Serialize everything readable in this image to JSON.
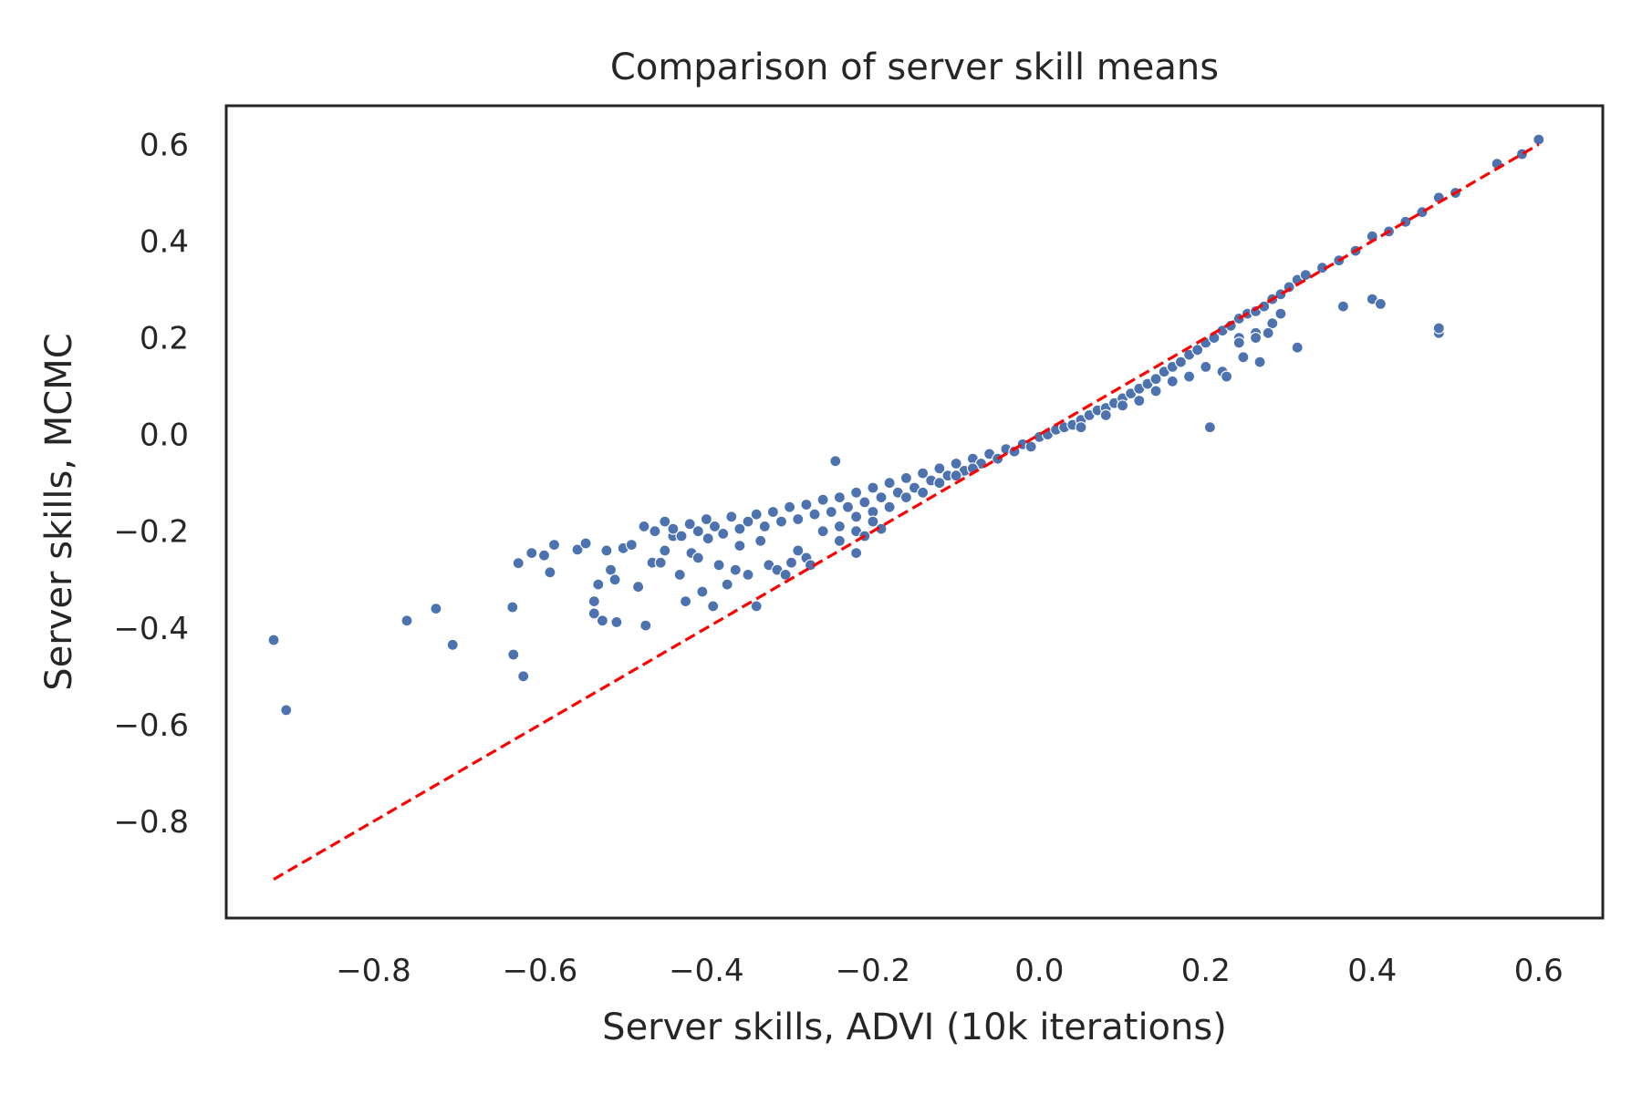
{
  "chart_data": {
    "type": "scatter",
    "title": "Comparison of server skill means",
    "xlabel": "Server skills, ADVI (10k iterations)",
    "ylabel": "Server skills, MCMC",
    "xlim": [
      -0.977,
      0.677
    ],
    "ylim": [
      -1.0,
      0.68
    ],
    "x_ticks": [
      -0.8,
      -0.6,
      -0.4,
      -0.2,
      0.0,
      0.2,
      0.4,
      0.6
    ],
    "x_tick_labels": [
      "−0.8",
      "−0.6",
      "−0.4",
      "−0.2",
      "0.0",
      "0.2",
      "0.4",
      "0.6"
    ],
    "y_ticks": [
      -0.8,
      -0.6,
      -0.4,
      -0.2,
      0.0,
      0.2,
      0.4,
      0.6
    ],
    "y_tick_labels": [
      "−0.8",
      "−0.6",
      "−0.4",
      "−0.2",
      "0.0",
      "0.2",
      "0.4",
      "0.6"
    ],
    "grid": false,
    "colors": {
      "points": "#4c72b0",
      "point_edge": "#ffffff",
      "reference_line": "#ff0000",
      "frame": "#262626",
      "text": "#262626"
    },
    "reference_line": {
      "style": "dashed",
      "points": [
        [
          -0.92,
          -0.92
        ],
        [
          0.6,
          0.6
        ]
      ]
    },
    "series": [
      {
        "points": [
          [
            -0.92,
            -0.425
          ],
          [
            -0.905,
            -0.57
          ],
          [
            -0.76,
            -0.385
          ],
          [
            -0.725,
            -0.36
          ],
          [
            -0.705,
            -0.435
          ],
          [
            -0.633,
            -0.357
          ],
          [
            -0.632,
            -0.455
          ],
          [
            -0.62,
            -0.5
          ],
          [
            -0.626,
            -0.266
          ],
          [
            -0.61,
            -0.245
          ],
          [
            -0.595,
            -0.25
          ],
          [
            -0.588,
            -0.285
          ],
          [
            -0.583,
            -0.228
          ],
          [
            -0.555,
            -0.238
          ],
          [
            -0.545,
            -0.225
          ],
          [
            -0.535,
            -0.345
          ],
          [
            -0.535,
            -0.37
          ],
          [
            -0.53,
            -0.31
          ],
          [
            -0.525,
            -0.385
          ],
          [
            -0.52,
            -0.24
          ],
          [
            -0.515,
            -0.28
          ],
          [
            -0.51,
            -0.3
          ],
          [
            -0.508,
            -0.388
          ],
          [
            -0.5,
            -0.235
          ],
          [
            -0.49,
            -0.228
          ],
          [
            -0.482,
            -0.315
          ],
          [
            -0.473,
            -0.395
          ],
          [
            -0.465,
            -0.265
          ],
          [
            -0.455,
            -0.265
          ],
          [
            -0.45,
            -0.24
          ],
          [
            -0.44,
            -0.21
          ],
          [
            -0.432,
            -0.29
          ],
          [
            -0.425,
            -0.345
          ],
          [
            -0.418,
            -0.245
          ],
          [
            -0.41,
            -0.255
          ],
          [
            -0.405,
            -0.325
          ],
          [
            -0.398,
            -0.215
          ],
          [
            -0.392,
            -0.355
          ],
          [
            -0.385,
            -0.27
          ],
          [
            -0.375,
            -0.31
          ],
          [
            -0.365,
            -0.28
          ],
          [
            -0.36,
            -0.23
          ],
          [
            -0.35,
            -0.29
          ],
          [
            -0.34,
            -0.355
          ],
          [
            -0.335,
            -0.22
          ],
          [
            -0.325,
            -0.27
          ],
          [
            -0.315,
            -0.28
          ],
          [
            -0.305,
            -0.29
          ],
          [
            -0.298,
            -0.265
          ],
          [
            -0.29,
            -0.24
          ],
          [
            -0.28,
            -0.255
          ],
          [
            -0.275,
            -0.27
          ],
          [
            -0.245,
            -0.055
          ],
          [
            -0.22,
            -0.245
          ],
          [
            -0.475,
            -0.19
          ],
          [
            -0.462,
            -0.2
          ],
          [
            -0.45,
            -0.18
          ],
          [
            -0.44,
            -0.195
          ],
          [
            -0.43,
            -0.21
          ],
          [
            -0.42,
            -0.185
          ],
          [
            -0.41,
            -0.2
          ],
          [
            -0.4,
            -0.175
          ],
          [
            -0.39,
            -0.19
          ],
          [
            -0.38,
            -0.205
          ],
          [
            -0.37,
            -0.17
          ],
          [
            -0.36,
            -0.195
          ],
          [
            -0.35,
            -0.18
          ],
          [
            -0.34,
            -0.165
          ],
          [
            -0.33,
            -0.19
          ],
          [
            -0.32,
            -0.16
          ],
          [
            -0.31,
            -0.18
          ],
          [
            -0.3,
            -0.15
          ],
          [
            -0.29,
            -0.175
          ],
          [
            -0.28,
            -0.145
          ],
          [
            -0.27,
            -0.165
          ],
          [
            -0.26,
            -0.135
          ],
          [
            -0.25,
            -0.16
          ],
          [
            -0.24,
            -0.13
          ],
          [
            -0.23,
            -0.15
          ],
          [
            -0.22,
            -0.12
          ],
          [
            -0.21,
            -0.14
          ],
          [
            -0.2,
            -0.11
          ],
          [
            -0.19,
            -0.13
          ],
          [
            -0.18,
            -0.1
          ],
          [
            -0.17,
            -0.12
          ],
          [
            -0.16,
            -0.09
          ],
          [
            -0.15,
            -0.11
          ],
          [
            -0.14,
            -0.08
          ],
          [
            -0.13,
            -0.095
          ],
          [
            -0.12,
            -0.07
          ],
          [
            -0.11,
            -0.085
          ],
          [
            -0.1,
            -0.06
          ],
          [
            -0.09,
            -0.075
          ],
          [
            -0.08,
            -0.05
          ],
          [
            -0.07,
            -0.06
          ],
          [
            -0.06,
            -0.04
          ],
          [
            -0.05,
            -0.05
          ],
          [
            -0.04,
            -0.03
          ],
          [
            -0.03,
            -0.035
          ],
          [
            -0.02,
            -0.02
          ],
          [
            -0.01,
            -0.025
          ],
          [
            0.0,
            -0.005
          ],
          [
            0.01,
            0.0
          ],
          [
            0.02,
            0.01
          ],
          [
            0.03,
            0.015
          ],
          [
            0.04,
            0.02
          ],
          [
            0.05,
            0.03
          ],
          [
            0.06,
            0.04
          ],
          [
            0.07,
            0.05
          ],
          [
            0.08,
            0.055
          ],
          [
            0.09,
            0.065
          ],
          [
            0.1,
            0.075
          ],
          [
            0.11,
            0.085
          ],
          [
            0.12,
            0.095
          ],
          [
            0.13,
            0.105
          ],
          [
            0.14,
            0.115
          ],
          [
            0.15,
            0.13
          ],
          [
            0.16,
            0.14
          ],
          [
            0.17,
            0.15
          ],
          [
            0.18,
            0.165
          ],
          [
            0.19,
            0.175
          ],
          [
            0.2,
            0.19
          ],
          [
            0.21,
            0.2
          ],
          [
            0.22,
            0.215
          ],
          [
            0.23,
            0.225
          ],
          [
            0.24,
            0.24
          ],
          [
            0.25,
            0.25
          ],
          [
            0.26,
            0.255
          ],
          [
            0.27,
            0.265
          ],
          [
            0.28,
            0.28
          ],
          [
            0.29,
            0.29
          ],
          [
            0.3,
            0.305
          ],
          [
            0.31,
            0.32
          ],
          [
            0.32,
            0.33
          ],
          [
            0.34,
            0.345
          ],
          [
            0.36,
            0.36
          ],
          [
            0.38,
            0.38
          ],
          [
            0.4,
            0.41
          ],
          [
            0.42,
            0.42
          ],
          [
            0.44,
            0.44
          ],
          [
            0.46,
            0.46
          ],
          [
            0.48,
            0.49
          ],
          [
            0.5,
            0.5
          ],
          [
            0.55,
            0.56
          ],
          [
            0.58,
            0.58
          ],
          [
            0.6,
            0.61
          ],
          [
            -0.26,
            -0.2
          ],
          [
            -0.24,
            -0.19
          ],
          [
            -0.22,
            -0.17
          ],
          [
            -0.2,
            -0.16
          ],
          [
            -0.18,
            -0.15
          ],
          [
            -0.16,
            -0.13
          ],
          [
            -0.14,
            -0.12
          ],
          [
            -0.12,
            -0.1
          ],
          [
            -0.1,
            -0.085
          ],
          [
            -0.08,
            -0.07
          ],
          [
            -0.24,
            -0.22
          ],
          [
            -0.22,
            -0.2
          ],
          [
            -0.2,
            -0.18
          ],
          [
            -0.19,
            -0.195
          ],
          [
            -0.21,
            -0.21
          ],
          [
            0.05,
            0.015
          ],
          [
            0.08,
            0.04
          ],
          [
            0.1,
            0.06
          ],
          [
            0.12,
            0.07
          ],
          [
            0.14,
            0.09
          ],
          [
            0.16,
            0.11
          ],
          [
            0.18,
            0.12
          ],
          [
            0.2,
            0.14
          ],
          [
            0.22,
            0.13
          ],
          [
            0.24,
            0.2
          ],
          [
            0.26,
            0.21
          ],
          [
            0.28,
            0.23
          ],
          [
            0.24,
            0.19
          ],
          [
            0.26,
            0.2
          ],
          [
            0.29,
            0.25
          ],
          [
            0.205,
            0.015
          ],
          [
            0.225,
            0.12
          ],
          [
            0.245,
            0.16
          ],
          [
            0.265,
            0.15
          ],
          [
            0.275,
            0.21
          ],
          [
            0.31,
            0.18
          ],
          [
            0.365,
            0.265
          ],
          [
            0.4,
            0.28
          ],
          [
            0.41,
            0.27
          ],
          [
            0.48,
            0.21
          ],
          [
            0.48,
            0.22
          ]
        ]
      }
    ]
  }
}
